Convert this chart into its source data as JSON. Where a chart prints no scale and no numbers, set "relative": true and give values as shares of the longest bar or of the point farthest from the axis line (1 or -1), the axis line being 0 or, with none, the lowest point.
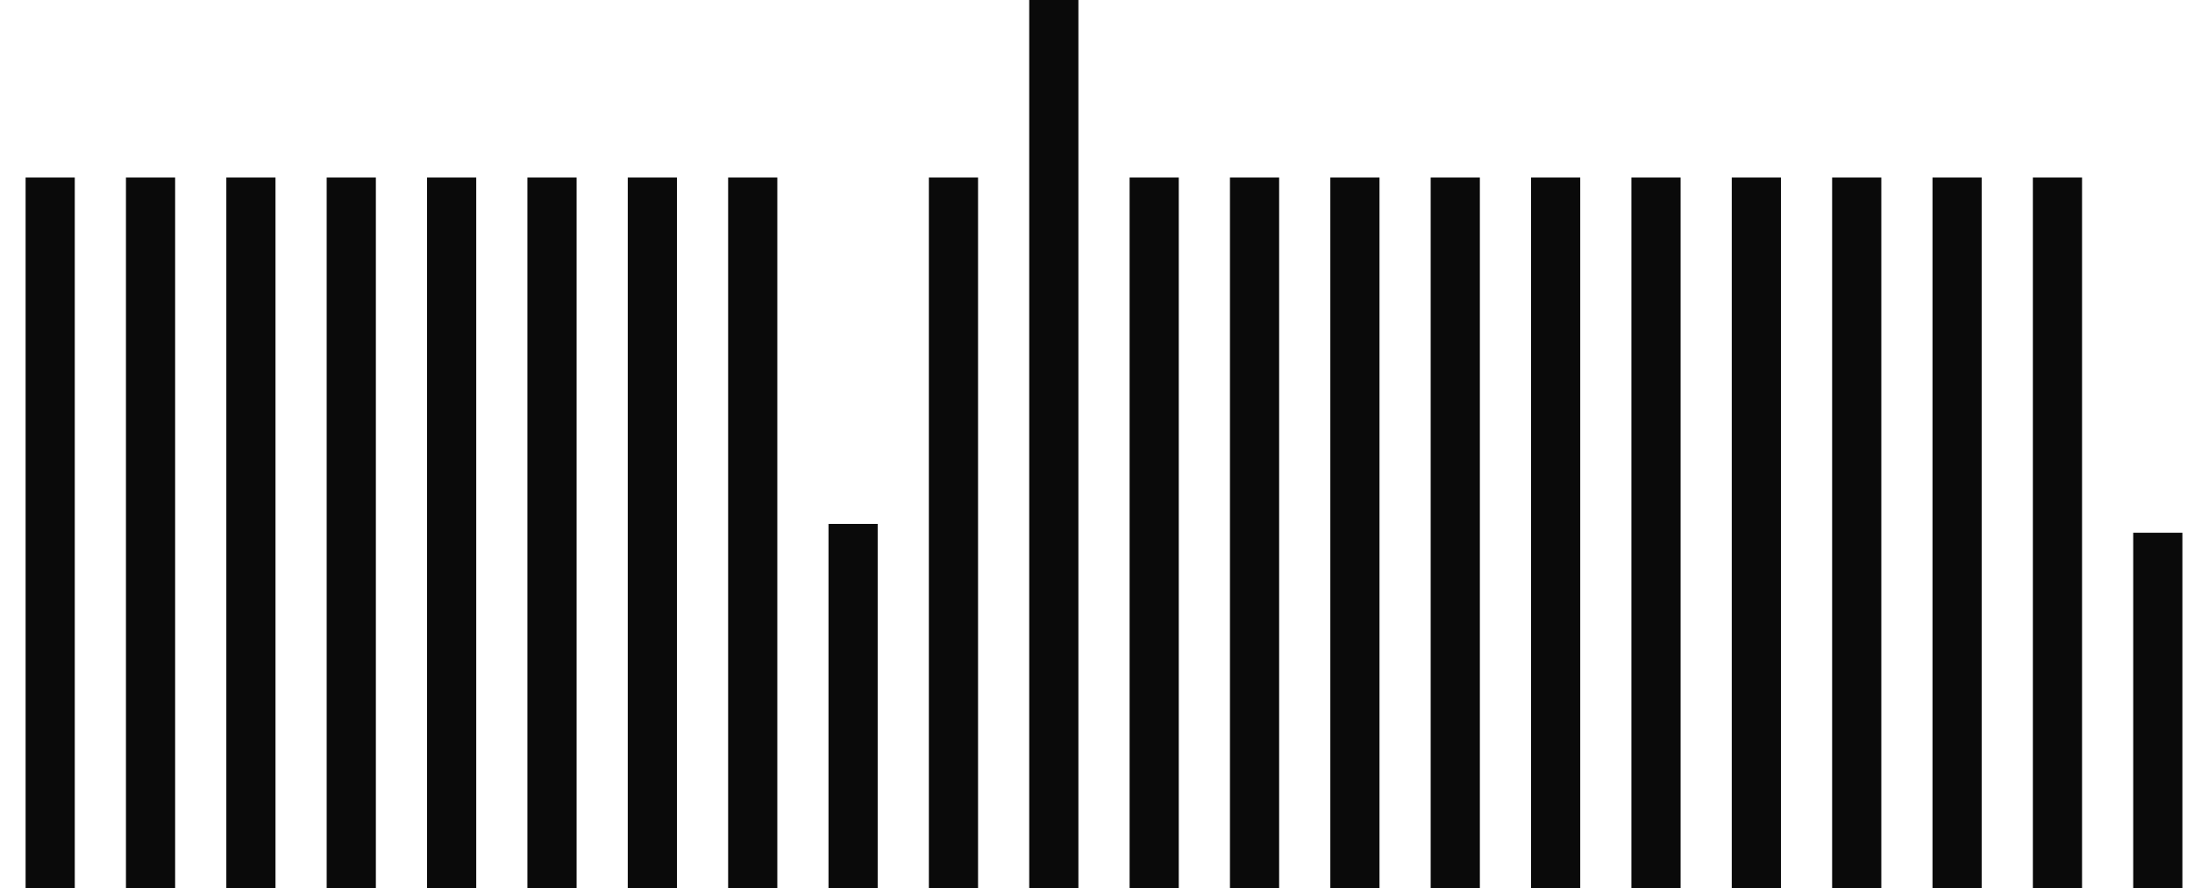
{
  "chart_data": {
    "type": "bar",
    "relative": true,
    "color": "#0a0a0a",
    "categories": [
      null,
      null,
      null,
      null,
      null,
      null,
      null,
      null,
      null,
      null,
      null,
      null,
      null,
      null,
      null,
      null,
      null,
      null,
      null,
      null,
      null,
      null
    ],
    "values": [
      0.8,
      0.8,
      0.8,
      0.8,
      0.8,
      0.8,
      0.8,
      0.8,
      0.41,
      0.8,
      1,
      0.8,
      0.8,
      0.8,
      0.8,
      0.8,
      0.8,
      0.8,
      0.8,
      0.8,
      0.8,
      0.4
    ]
  }
}
